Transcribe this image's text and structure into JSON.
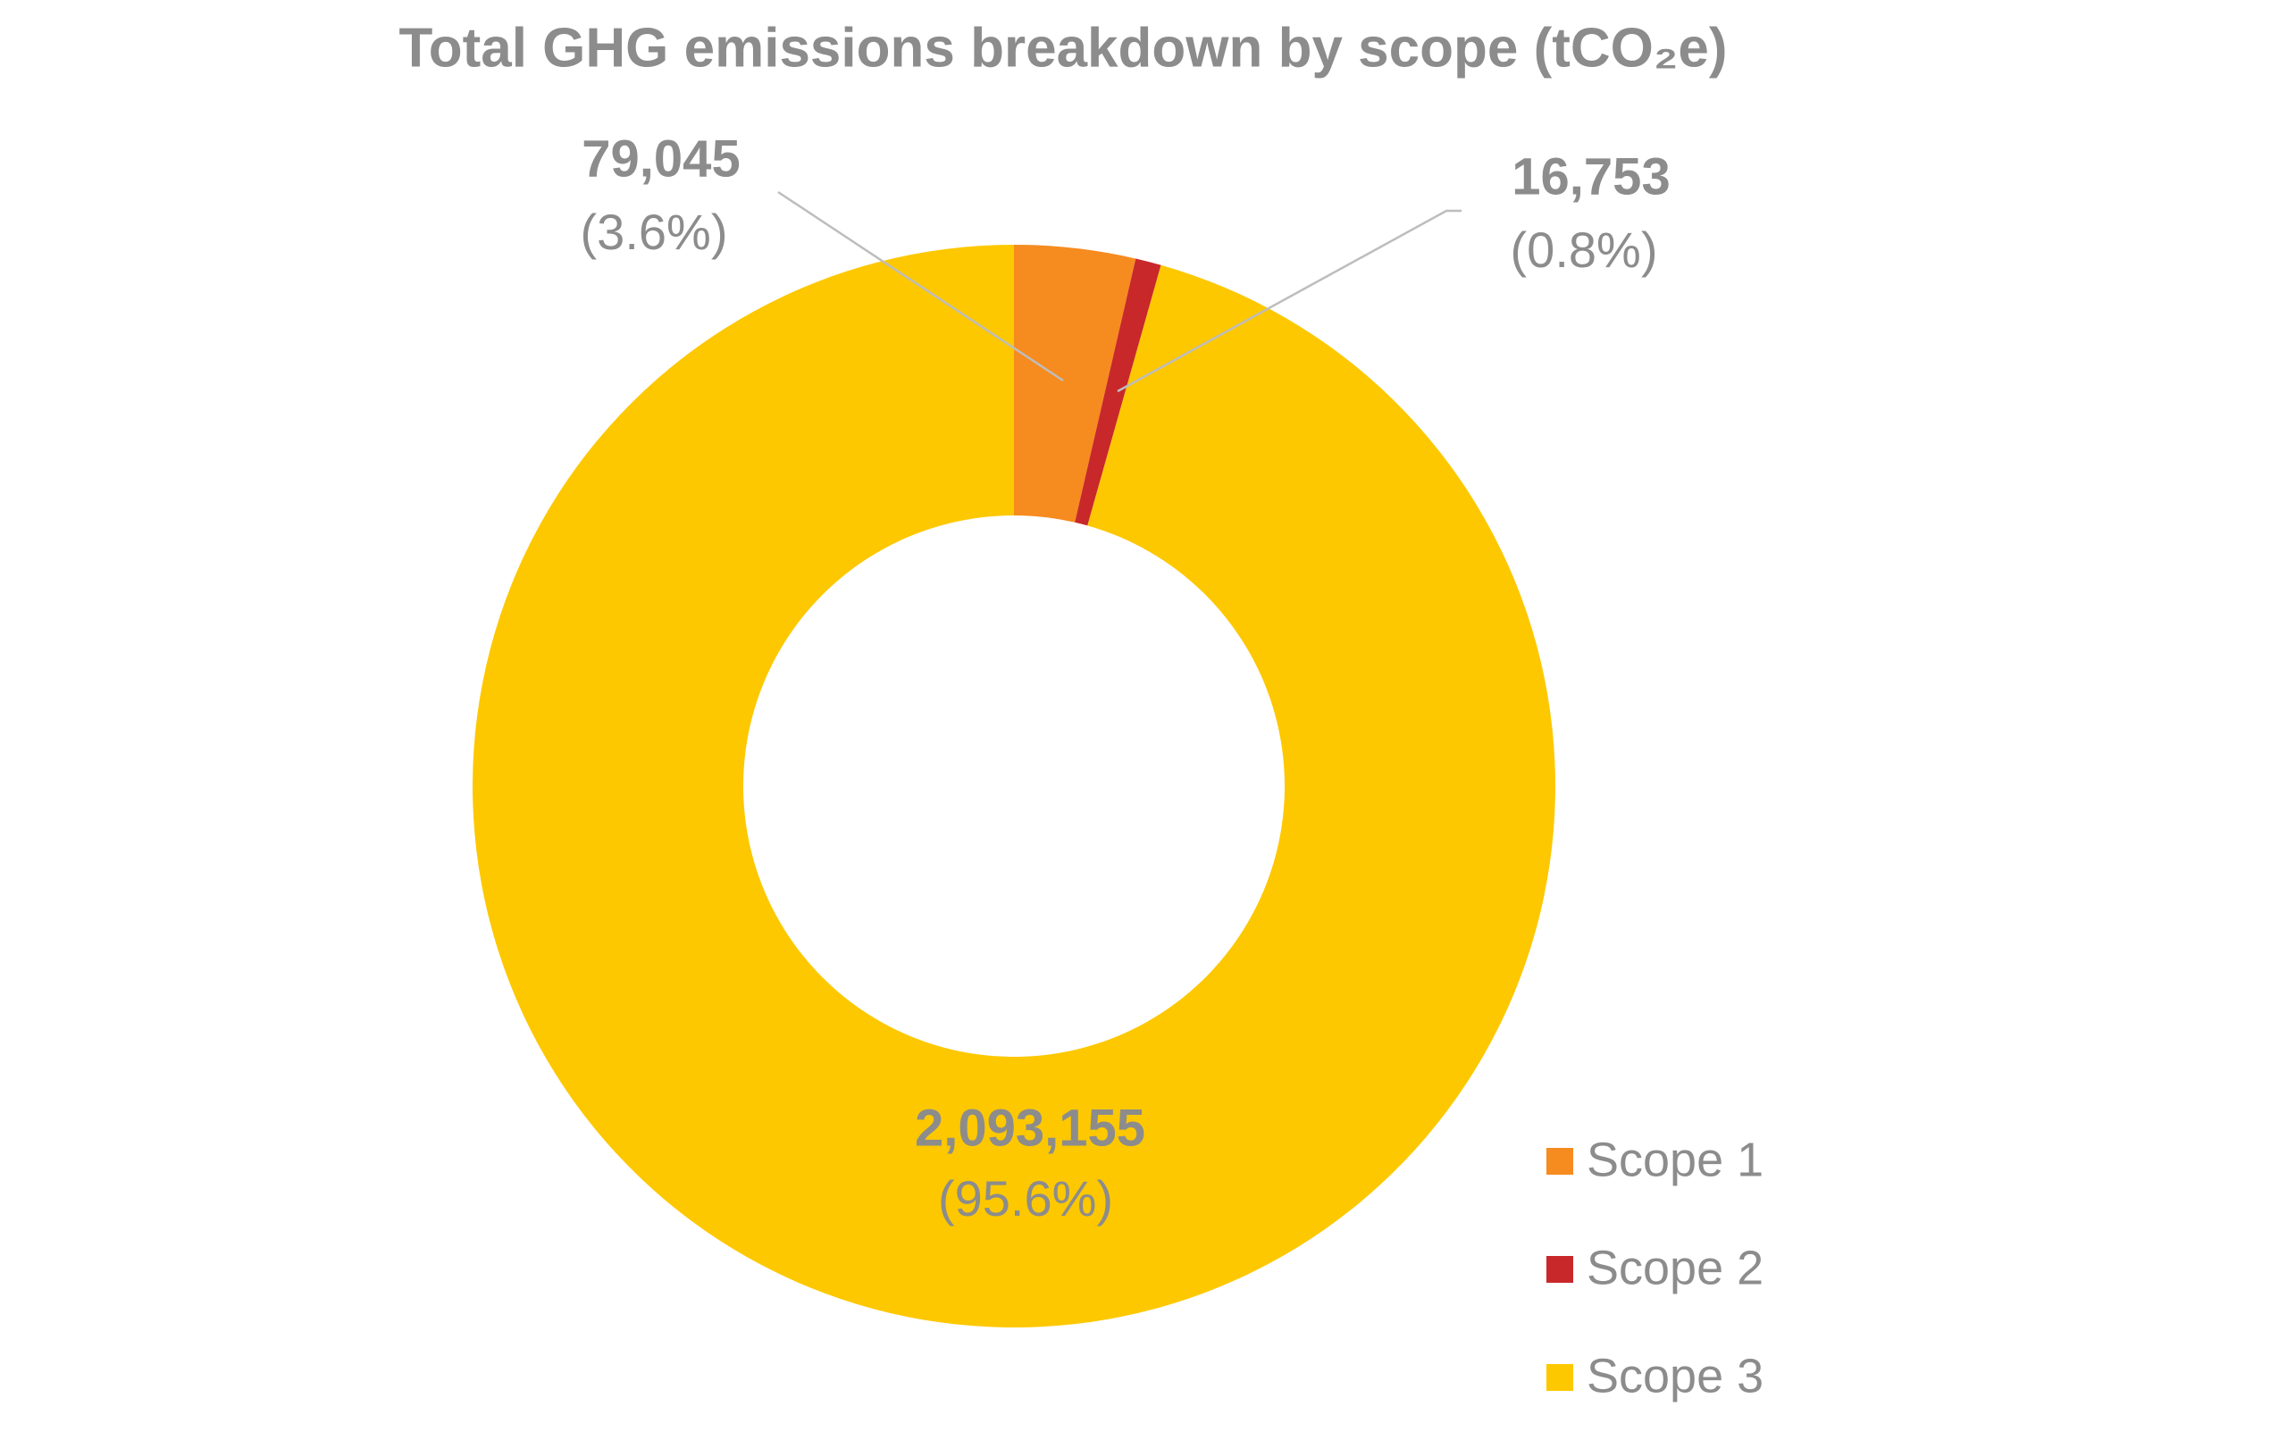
{
  "chart_data": {
    "type": "donut",
    "title": "Total GHG emissions breakdown by scope (tCO₂e)",
    "categories": [
      "Scope 1",
      "Scope 2",
      "Scope 3"
    ],
    "values": [
      79045,
      16753,
      2093155
    ],
    "value_labels": [
      "79,045",
      "16,753",
      "2,093,155"
    ],
    "percent_labels": [
      "(3.6%)",
      "(0.8%)",
      "(95.6%)"
    ],
    "colors": [
      "#f68b1f",
      "#c8282a",
      "#fdc800"
    ],
    "legend": "bottom-right"
  }
}
